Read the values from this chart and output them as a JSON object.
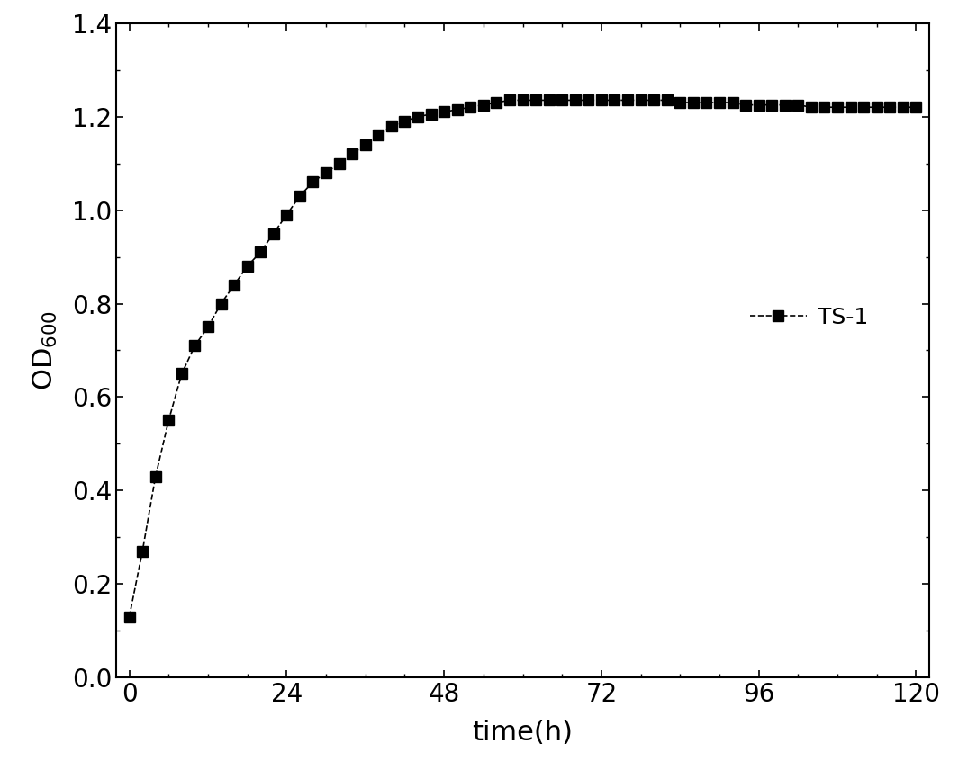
{
  "x": [
    0,
    2,
    4,
    6,
    8,
    10,
    12,
    14,
    16,
    18,
    20,
    22,
    24,
    26,
    28,
    30,
    32,
    34,
    36,
    38,
    40,
    42,
    44,
    46,
    48,
    50,
    52,
    54,
    56,
    58,
    60,
    62,
    64,
    66,
    68,
    70,
    72,
    74,
    76,
    78,
    80,
    82,
    84,
    86,
    88,
    90,
    92,
    94,
    96,
    98,
    100,
    102,
    104,
    106,
    108,
    110,
    112,
    114,
    116,
    118,
    120
  ],
  "y": [
    0.13,
    0.27,
    0.43,
    0.55,
    0.65,
    0.71,
    0.75,
    0.8,
    0.84,
    0.88,
    0.91,
    0.95,
    0.99,
    1.03,
    1.06,
    1.08,
    1.1,
    1.12,
    1.14,
    1.16,
    1.18,
    1.19,
    1.2,
    1.205,
    1.21,
    1.215,
    1.22,
    1.225,
    1.23,
    1.235,
    1.235,
    1.235,
    1.235,
    1.235,
    1.235,
    1.235,
    1.235,
    1.235,
    1.235,
    1.235,
    1.235,
    1.235,
    1.23,
    1.23,
    1.23,
    1.23,
    1.23,
    1.225,
    1.225,
    1.225,
    1.225,
    1.225,
    1.22,
    1.22,
    1.22,
    1.22,
    1.22,
    1.22,
    1.22,
    1.22,
    1.22
  ],
  "xlabel": "time(h)",
  "ylabel": "OD$_{600}$",
  "legend_label": "TS-1",
  "xlim": [
    -2,
    122
  ],
  "ylim": [
    0.0,
    1.4
  ],
  "xticks": [
    0,
    24,
    48,
    72,
    96,
    120
  ],
  "yticks": [
    0.0,
    0.2,
    0.4,
    0.6,
    0.8,
    1.0,
    1.2,
    1.4
  ],
  "line_color": "#000000",
  "marker": "s",
  "markersize": 8,
  "linewidth": 1.2,
  "linestyle": "--",
  "xlabel_fontsize": 22,
  "ylabel_fontsize": 22,
  "tick_fontsize": 20,
  "legend_fontsize": 18,
  "background_color": "#ffffff"
}
